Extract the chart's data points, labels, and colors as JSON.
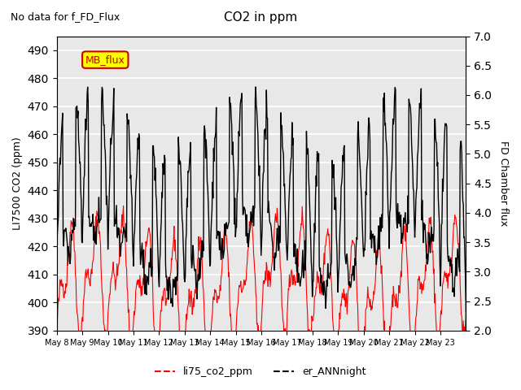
{
  "title": "CO2 in ppm",
  "subtitle": "No data for f_FD_Flux",
  "ylabel_left": "LI7500 CO2 (ppm)",
  "ylabel_right": "FD Chamber flux",
  "ylim_left": [
    390,
    495
  ],
  "ylim_right": [
    2.0,
    7.0
  ],
  "yticks_left": [
    390,
    400,
    410,
    420,
    430,
    440,
    450,
    460,
    470,
    480,
    490
  ],
  "yticks_right": [
    2.0,
    2.5,
    3.0,
    3.5,
    4.0,
    4.5,
    5.0,
    5.5,
    6.0,
    6.5,
    7.0
  ],
  "xticklabels": [
    "May 8",
    "May 9",
    "May 10",
    "May 11",
    "May 12",
    "May 13",
    "May 14",
    "May 15",
    "May 16",
    "May 17",
    "May 18",
    "May 19",
    "May 20",
    "May 21",
    "May 22",
    "May 23"
  ],
  "legend_entries": [
    "li75_co2_ppm",
    "er_ANNnight"
  ],
  "legend_colors": [
    "red",
    "black"
  ],
  "mb_flux_box_color": "#ffff00",
  "mb_flux_text_color": "#cc0000",
  "mb_flux_border_color": "#cc0000",
  "line1_color": "red",
  "line2_color": "black",
  "background_color": "#e8e8e8",
  "grid_color": "white",
  "n_days": 16,
  "seed": 42
}
